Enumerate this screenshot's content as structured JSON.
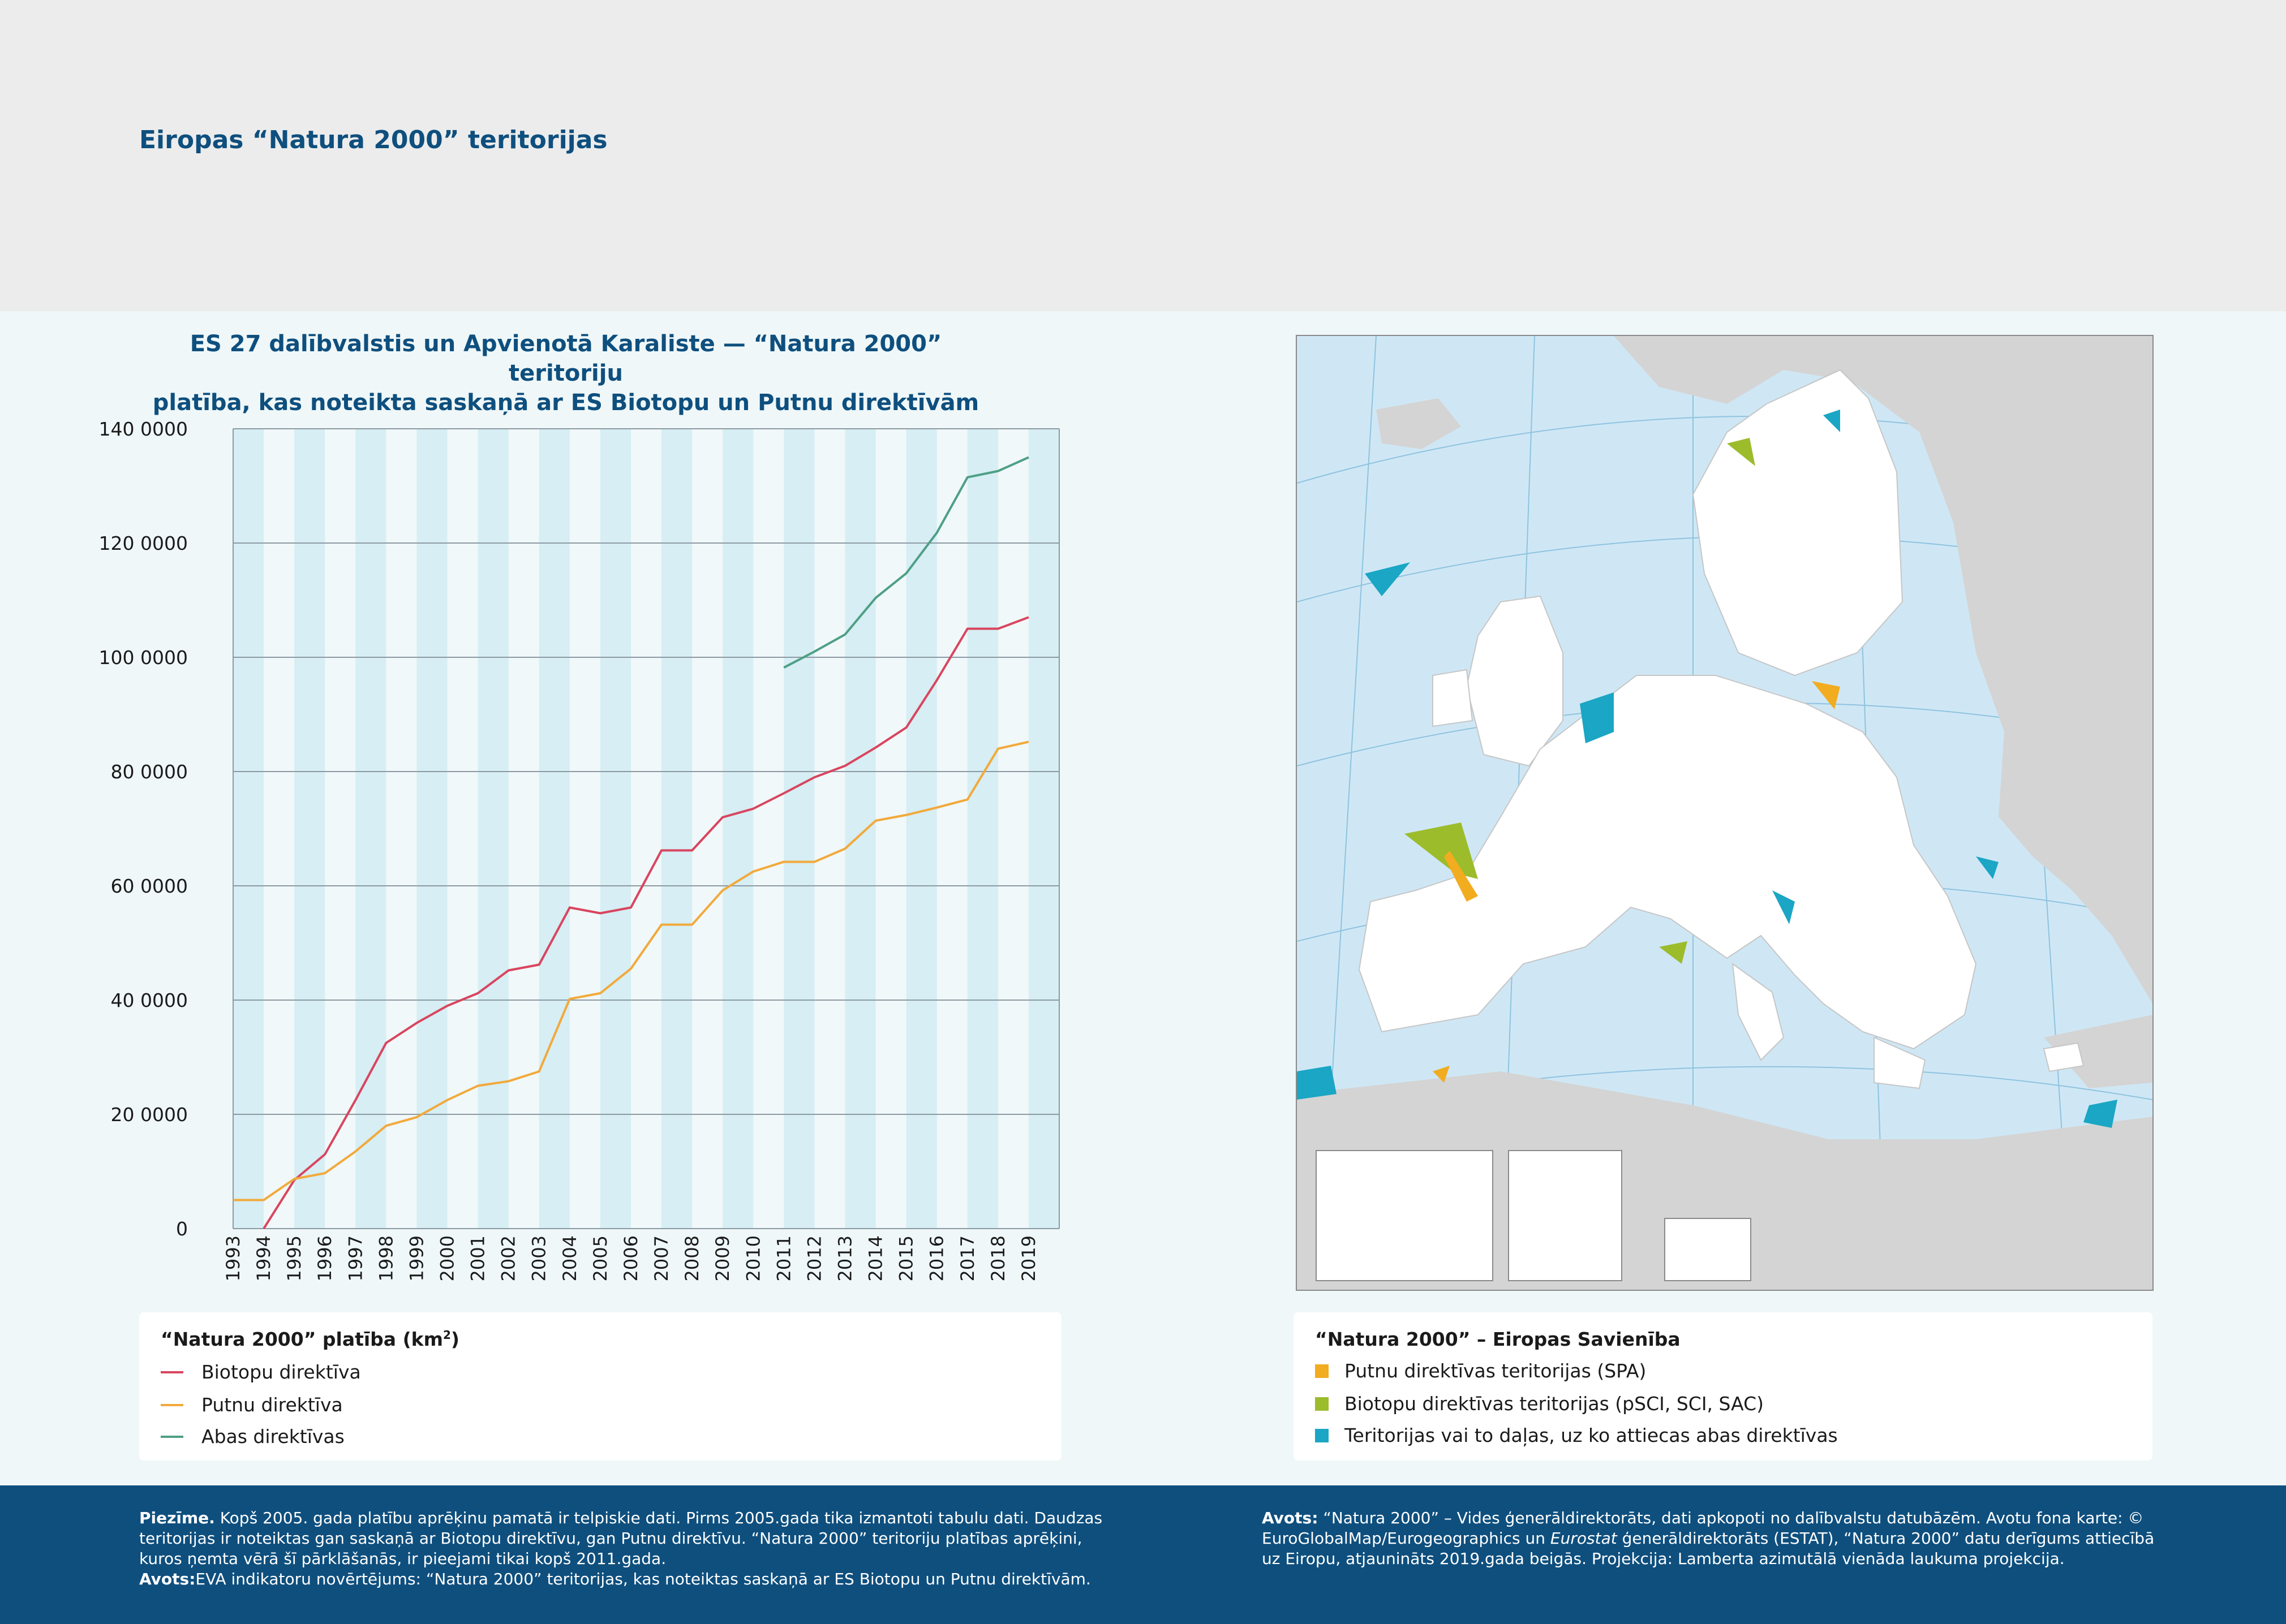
{
  "page_title": "Eiropas “Natura 2000” teritorijas",
  "chart_data": {
    "type": "line",
    "title_lines": [
      "ES 27 dalībvalstis un Apvienotā Karaliste — “Natura 2000” teritoriju",
      "platība, kas noteikta saskaņā ar ES Biotopu un Putnu direktīvām"
    ],
    "x": [
      1993,
      1994,
      1995,
      1996,
      1997,
      1998,
      1999,
      2000,
      2001,
      2002,
      2003,
      2004,
      2005,
      2006,
      2007,
      2008,
      2009,
      2010,
      2011,
      2012,
      2013,
      2014,
      2015,
      2016,
      2017,
      2018,
      2019
    ],
    "ylim": [
      0,
      1400000
    ],
    "y_ticks": [
      0,
      200000,
      400000,
      600000,
      800000,
      1000000,
      1200000,
      1400000
    ],
    "y_tick_labels": [
      "0",
      "20 0000",
      "40 0000",
      "60 0000",
      "80 0000",
      "100 0000",
      "120 0000",
      "140 0000"
    ],
    "grid": "horizontal",
    "alternating_year_bands": true,
    "series": [
      {
        "name": "Biotopu direktīva",
        "color": "#d9455f",
        "x": [
          1994,
          1995,
          1996,
          1997,
          1998,
          1999,
          2000,
          2001,
          2002,
          2003,
          2004,
          2005,
          2006,
          2007,
          2008,
          2009,
          2010,
          2011,
          2012,
          2013,
          2014,
          2015,
          2016,
          2017,
          2018,
          2019
        ],
        "values": [
          0,
          85000,
          130000,
          225000,
          325000,
          360000,
          390000,
          412000,
          452000,
          462000,
          562000,
          552000,
          562000,
          662000,
          662000,
          720000,
          735000,
          762000,
          790000,
          810000,
          842000,
          877000,
          960000,
          1050000,
          1050000,
          1070000
        ]
      },
      {
        "name": "Putnu direktīva",
        "color": "#f2a93b",
        "x": [
          1993,
          1994,
          1995,
          1996,
          1997,
          1998,
          1999,
          2000,
          2001,
          2002,
          2003,
          2004,
          2005,
          2006,
          2007,
          2008,
          2009,
          2010,
          2011,
          2012,
          2013,
          2014,
          2015,
          2016,
          2017,
          2018,
          2019
        ],
        "values": [
          50000,
          50000,
          87000,
          97000,
          135000,
          180000,
          195000,
          225000,
          250000,
          258000,
          275000,
          402000,
          412000,
          455000,
          532000,
          532000,
          592000,
          625000,
          642000,
          642000,
          665000,
          714000,
          724000,
          737000,
          751000,
          840000,
          852000
        ]
      },
      {
        "name": "Abas direktīvas",
        "color": "#4e9f85",
        "x": [
          2011,
          2012,
          2013,
          2014,
          2015,
          2016,
          2017,
          2018,
          2019
        ],
        "values": [
          982000,
          1010000,
          1040000,
          1104000,
          1147000,
          1218000,
          1315000,
          1326000,
          1350000
        ]
      }
    ]
  },
  "chart_legend": {
    "heading": "“Natura 2000” platība (km",
    "heading_sup": "2",
    "heading_close": ")"
  },
  "map": {
    "legend_heading": "“Natura 2000” – Eiropas Savienība",
    "items": [
      {
        "label": "Putnu direktīvas teritorijas (SPA)",
        "color": "#f2ac1f"
      },
      {
        "label": "Biotopu direktīvas teritorijas (pSCI, SCI, SAC)",
        "color": "#9cbc2c"
      },
      {
        "label": "Teritorijas vai to daļas, uz ko attiecas abas direktīvas",
        "color": "#1aa6c4"
      }
    ],
    "colors": {
      "sea": "#cfe7f5",
      "land_non_eu": "#d4d4d4",
      "land_eu": "#ffffff"
    }
  },
  "footer": {
    "note_label": "Piezīme.",
    "note_text": " Kopš 2005. gada platību aprēķinu pamatā ir telpiskie dati. Pirms 2005.gada tika izmantoti tabulu dati. Daudzas teritorijas ir noteiktas gan saskaņā ar Biotopu direktīvu, gan Putnu direktīvu. “Natura 2000” teritoriju platības aprēķini, kuros ņemta vērā šī pārklāšanās, ir pieejami tikai kopš 2011.gada.",
    "source_label": "Avots:",
    "source_text": "EVA indikatoru novērtējums: “Natura 2000” teritorijas, kas noteiktas saskaņā ar ES Biotopu un Putnu direktīvām.",
    "map_source_label": "Avots:",
    "map_source_text_1": " “Natura 2000” – Vides ģenerāldirektorāts, dati apkopoti no dalībvalstu datubāzēm. Avotu fona karte: © EuroGlobalMap/Eurogeographics un ",
    "map_source_italic": "Eurostat",
    "map_source_text_2": " ģenerāldirektorāts (ESTAT), “Natura 2000” datu derīgums attiecībā uz Eiropu, atjaunināts 2019.gada beigās. Projekcija: Lamberta azimutālā vienāda laukuma projekcija."
  }
}
